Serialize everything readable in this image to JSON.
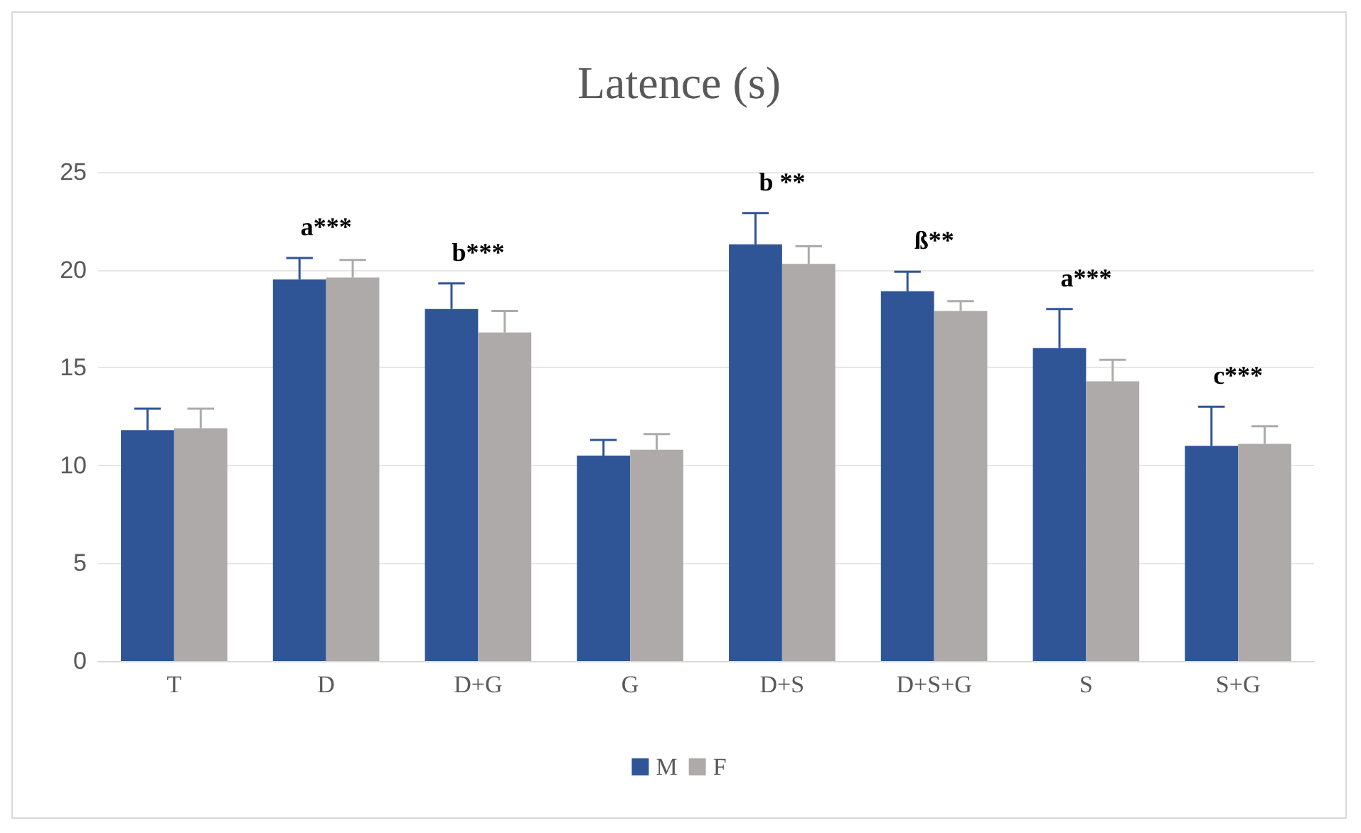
{
  "chart_data": {
    "type": "bar",
    "title": "Latence (s)",
    "categories": [
      "T",
      "D",
      "D+G",
      "G",
      "D+S",
      "D+S+G",
      "S",
      "S+G"
    ],
    "series": [
      {
        "name": "M",
        "color": "#2f5597",
        "values": [
          11.8,
          19.5,
          18.0,
          10.5,
          21.3,
          18.9,
          16.0,
          11.0
        ],
        "errors": [
          [
            11.8,
            12.9
          ],
          [
            19.5,
            20.6
          ],
          [
            18.0,
            19.3
          ],
          [
            10.5,
            11.3
          ],
          [
            21.3,
            22.9
          ],
          [
            18.9,
            19.9
          ],
          [
            16.0,
            18.0
          ],
          [
            11.0,
            13.0
          ]
        ]
      },
      {
        "name": "F",
        "color": "#aeaaaa",
        "values": [
          11.9,
          19.6,
          16.8,
          10.8,
          20.3,
          17.9,
          14.3,
          11.1
        ],
        "errors": [
          [
            11.9,
            12.9
          ],
          [
            19.6,
            20.5
          ],
          [
            16.8,
            17.9
          ],
          [
            10.8,
            11.6
          ],
          [
            20.3,
            21.2
          ],
          [
            17.9,
            18.4
          ],
          [
            14.3,
            15.4
          ],
          [
            11.1,
            12.0
          ]
        ]
      }
    ],
    "ylim": [
      0,
      25
    ],
    "yticks": [
      0,
      5,
      10,
      15,
      20,
      25
    ],
    "grid": "y",
    "legend": "bottom",
    "annotations": [
      {
        "text": "a***",
        "x": "D",
        "y": 19.5
      },
      {
        "text": "b***",
        "x": "D+G",
        "y": 18.0
      },
      {
        "text": "b **",
        "x": "D+S",
        "y": 21.3
      },
      {
        "text": "ß**",
        "x": "D+S+G",
        "y": 18.9
      },
      {
        "text": "a***",
        "x": "S",
        "y": 16.0
      },
      {
        "text": "c***",
        "x": "S+G",
        "y": 11.0
      }
    ]
  }
}
